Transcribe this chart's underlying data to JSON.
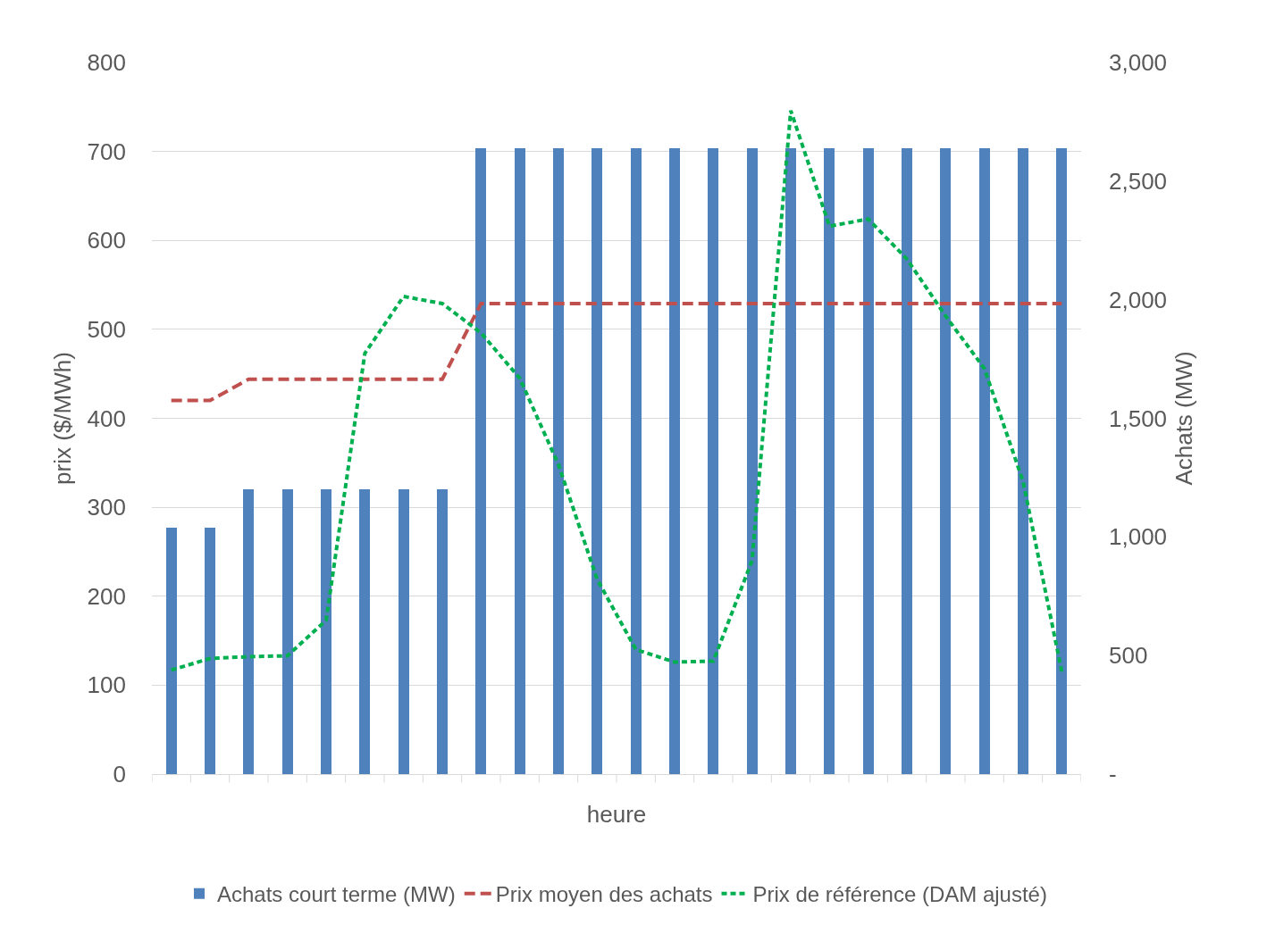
{
  "chart_data": {
    "type": "bar",
    "xlabel": "heure",
    "ylabel": "prix ($/MWh)",
    "y2label": "Achats (MW)",
    "categories": [
      null,
      null,
      null,
      null,
      null,
      null,
      null,
      null,
      null,
      null,
      null,
      null,
      null,
      null,
      null,
      null,
      null,
      null,
      null,
      null,
      null,
      null,
      null,
      null
    ],
    "series": [
      {
        "name": "Achats court terme (MW)",
        "axis": "y2",
        "color": "#4f81bd",
        "values": [
          1040,
          1040,
          1200,
          1200,
          1200,
          1200,
          1200,
          1200,
          2640,
          2640,
          2640,
          2640,
          2640,
          2640,
          2640,
          2640,
          2640,
          2640,
          2640,
          2640,
          2640,
          2640,
          2640,
          2640
        ]
      },
      {
        "name": "Prix moyen des achats",
        "type": "line",
        "line_style": "dashed",
        "color": "#c0504d",
        "values": [
          420,
          420,
          444,
          444,
          444,
          444,
          444,
          444,
          529,
          529,
          529,
          529,
          529,
          529,
          529,
          529,
          529,
          529,
          529,
          529,
          529,
          529,
          529,
          529
        ]
      },
      {
        "name": "Prix de référence (DAM ajusté)",
        "type": "line",
        "line_style": "dotted",
        "color": "#00b050",
        "values": [
          117,
          130,
          132,
          133,
          173,
          473,
          537,
          529,
          496,
          445,
          348,
          219,
          140,
          126,
          127,
          240,
          746,
          616,
          624,
          579,
          515,
          456,
          329,
          115
        ]
      }
    ],
    "ylim": [
      0,
      800
    ],
    "yticks": [
      0,
      100,
      200,
      300,
      400,
      500,
      600,
      700,
      800
    ],
    "y2lim": [
      0,
      3000
    ],
    "y2ticks": [
      {
        "value": 0,
        "label": "-"
      },
      {
        "value": 500,
        "label": "500"
      },
      {
        "value": 1000,
        "label": "1,000"
      },
      {
        "value": 1500,
        "label": "1,500"
      },
      {
        "value": 2000,
        "label": "2,000"
      },
      {
        "value": 2500,
        "label": "2,500"
      },
      {
        "value": 3000,
        "label": "3,000"
      }
    ],
    "grid": "y",
    "legend": "bottom"
  }
}
